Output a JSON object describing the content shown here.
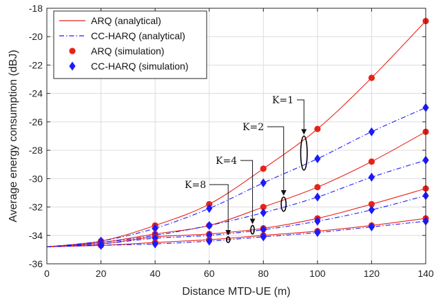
{
  "chart_data": {
    "type": "line",
    "xlabel": "Distance MTD-UE (m)",
    "ylabel": "Average energy consumption (dBJ)",
    "xlim": [
      0,
      140
    ],
    "ylim": [
      -36,
      -18
    ],
    "xticks": [
      0,
      20,
      40,
      60,
      80,
      100,
      120,
      140
    ],
    "yticks": [
      -36,
      -34,
      -32,
      -30,
      -28,
      -26,
      -24,
      -22,
      -20,
      -18
    ],
    "grid": true,
    "legend_position": "top-left",
    "colors": {
      "arq": "#e8221b",
      "ccharq": "#1a1aff"
    },
    "sim_x": [
      20,
      40,
      60,
      80,
      100,
      120,
      140
    ],
    "series": [
      {
        "name": "ARQ (analytical)",
        "group": "K=1",
        "kind": "analytical-arq",
        "y": [
          -34.4,
          -33.3,
          -31.8,
          -29.3,
          -26.5,
          -22.9,
          -18.9
        ]
      },
      {
        "name": "CC-HARQ (analytical)",
        "group": "K=1",
        "kind": "analytical-ccharq",
        "y": [
          -34.4,
          -33.5,
          -32.1,
          -30.3,
          -28.6,
          -26.7,
          -25.0
        ]
      },
      {
        "name": "ARQ (analytical)",
        "group": "K=2",
        "kind": "analytical-arq",
        "y": [
          -34.5,
          -33.9,
          -33.3,
          -32.0,
          -30.6,
          -28.8,
          -26.7
        ]
      },
      {
        "name": "CC-HARQ (analytical)",
        "group": "K=2",
        "kind": "analytical-ccharq",
        "y": [
          -34.5,
          -34.0,
          -33.3,
          -32.4,
          -31.3,
          -29.9,
          -28.7
        ]
      },
      {
        "name": "ARQ (analytical)",
        "group": "K=4",
        "kind": "analytical-arq",
        "y": [
          -34.6,
          -34.1,
          -33.9,
          -33.5,
          -32.8,
          -31.8,
          -30.7
        ]
      },
      {
        "name": "CC-HARQ (analytical)",
        "group": "K=4",
        "kind": "analytical-ccharq",
        "y": [
          -34.6,
          -34.2,
          -34.0,
          -33.6,
          -33.0,
          -32.2,
          -31.2
        ]
      },
      {
        "name": "ARQ (analytical)",
        "group": "K=8",
        "kind": "analytical-arq",
        "y": [
          -34.7,
          -34.5,
          -34.3,
          -34.0,
          -33.7,
          -33.3,
          -32.8
        ]
      },
      {
        "name": "CC-HARQ (analytical)",
        "group": "K=8",
        "kind": "analytical-ccharq",
        "y": [
          -34.7,
          -34.6,
          -34.4,
          -34.1,
          -33.8,
          -33.4,
          -33.0
        ]
      }
    ],
    "start_point": {
      "x": 0,
      "y": -34.8
    },
    "legend": [
      {
        "label": "ARQ (analytical)",
        "marker": "line-solid"
      },
      {
        "label": "CC-HARQ (analytical)",
        "marker": "line-dashdot"
      },
      {
        "label": "ARQ (simulation)",
        "marker": "circle"
      },
      {
        "label": "CC-HARQ (simulation)",
        "marker": "diamond"
      }
    ],
    "annotations": [
      {
        "text": "K=1",
        "x": 95,
        "y": -28.2,
        "rx": 1.2,
        "ry": 1.2
      },
      {
        "text": "K=2",
        "x": 87.5,
        "y": -31.8,
        "rx": 0.9,
        "ry": 0.5
      },
      {
        "text": "K=4",
        "x": 76,
        "y": -33.6,
        "rx": 0.6,
        "ry": 0.3
      },
      {
        "text": "K=8",
        "x": 67,
        "y": -34.3,
        "rx": 0.5,
        "ry": 0.2
      }
    ]
  }
}
